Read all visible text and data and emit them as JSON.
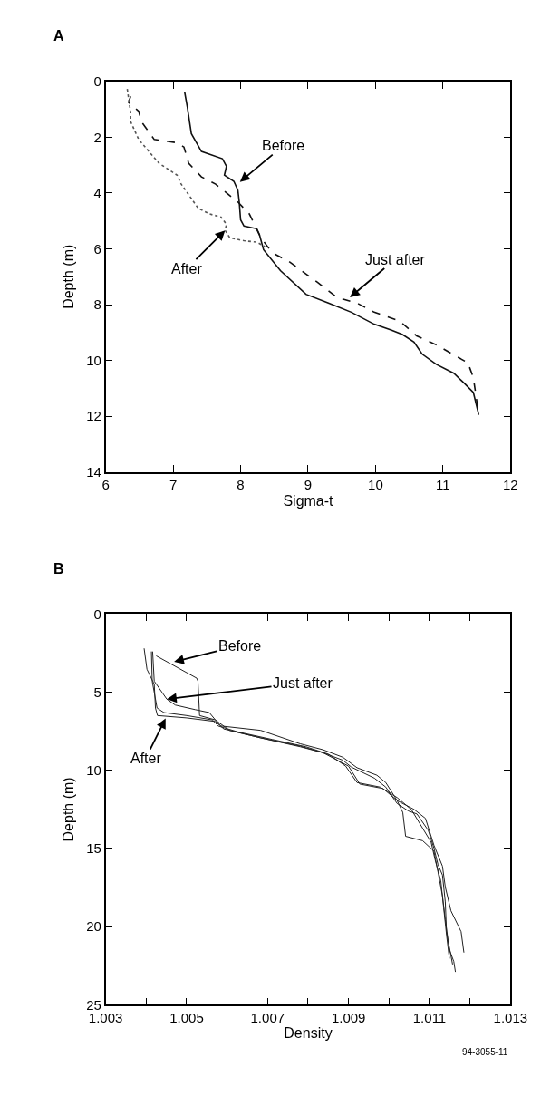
{
  "chart_data": [
    {
      "type": "line",
      "title": "A",
      "xlabel": "Sigma-t",
      "ylabel": "Depth (m)",
      "xlim": [
        6,
        12
      ],
      "xticks": [
        6,
        7,
        8,
        9,
        10,
        11,
        12
      ],
      "ylim": [
        14,
        0
      ],
      "yticks": [
        0,
        2,
        4,
        6,
        8,
        10,
        12,
        14
      ],
      "marker": "none",
      "series": [
        {
          "color": "#111111",
          "line_style": "solid",
          "x": [
            7.17,
            7.21,
            7.27,
            7.42,
            7.73,
            7.79,
            7.76,
            7.9,
            7.96,
            7.98,
            8.0,
            8.05,
            8.24,
            8.28,
            8.34,
            8.59,
            8.97,
            9.31,
            9.64,
            9.98,
            10.23,
            10.4,
            10.57,
            10.69,
            10.9,
            11.16,
            11.32,
            11.45,
            11.53
          ],
          "values": [
            0.37,
            0.91,
            1.87,
            2.51,
            2.77,
            3.04,
            3.36,
            3.58,
            3.9,
            4.32,
            4.96,
            5.18,
            5.28,
            5.5,
            6.03,
            6.78,
            7.63,
            7.95,
            8.27,
            8.7,
            8.91,
            9.07,
            9.34,
            9.77,
            10.14,
            10.46,
            10.83,
            11.15,
            11.95
          ]
        },
        {
          "color": "#111111",
          "line_style": "dashed",
          "x": [
            6.37,
            6.34,
            6.39,
            6.49,
            6.53,
            6.72,
            7.04,
            7.16,
            7.23,
            7.42,
            7.63,
            7.96,
            8.13,
            8.3,
            8.47,
            8.72,
            9.14,
            9.43,
            9.73,
            9.98,
            10.36,
            10.61,
            10.9,
            11.37,
            11.45,
            11.53
          ],
          "values": [
            0.53,
            0.75,
            0.85,
            1.07,
            1.44,
            2.08,
            2.19,
            2.35,
            2.93,
            3.42,
            3.68,
            4.32,
            4.75,
            5.6,
            6.14,
            6.46,
            7.2,
            7.74,
            7.95,
            8.27,
            8.59,
            9.12,
            9.44,
            10.09,
            10.62,
            11.95
          ]
        },
        {
          "color": "#555555",
          "line_style": "dotted",
          "x": [
            6.32,
            6.37,
            6.37,
            6.49,
            6.79,
            7.06,
            7.12,
            7.37,
            7.54,
            7.71,
            7.79,
            7.77,
            7.84,
            8.05,
            8.24,
            8.36
          ],
          "values": [
            0.27,
            1.12,
            1.44,
            2.08,
            2.93,
            3.36,
            3.68,
            4.54,
            4.75,
            4.86,
            5.12,
            5.34,
            5.6,
            5.71,
            5.76,
            5.92
          ]
        }
      ],
      "annotations": [
        {
          "text": "Before",
          "x": 7.99,
          "y": 3.6
        },
        {
          "text": "After",
          "x": 7.77,
          "y": 5.34
        },
        {
          "text": "Just after",
          "x": 9.62,
          "y": 7.74
        }
      ]
    },
    {
      "type": "line",
      "title": "B",
      "xlabel": "Density",
      "ylabel": "Depth (m)",
      "xlim": [
        1.003,
        1.013
      ],
      "xticks": [
        1.003,
        {
          "value": 1.004,
          "label": null
        },
        1.005,
        {
          "value": 1.006,
          "label": null
        },
        1.007,
        {
          "value": 1.008,
          "label": null
        },
        1.009,
        {
          "value": 1.01,
          "label": null
        },
        1.011,
        {
          "value": 1.012,
          "label": null
        },
        1.013
      ],
      "ylim": [
        25,
        0
      ],
      "yticks": [
        0,
        5,
        10,
        15,
        20,
        25
      ],
      "marker": "none",
      "series": [
        {
          "color": "#222222",
          "line_style": "solid",
          "x": [
            1.00425,
            1.00525,
            1.00528,
            1.00532,
            1.00571,
            1.00606,
            1.00683,
            1.00781,
            1.00837,
            1.00886,
            1.00907,
            1.00964,
            1.00992,
            1.0102,
            1.01048,
            1.01069,
            1.01097,
            1.01111,
            1.01121,
            1.01132,
            1.01139,
            1.01142,
            1.01149,
            1.0116,
            1.01164
          ],
          "values": [
            2.67,
            4.1,
            4.29,
            6.49,
            6.77,
            7.44,
            7.92,
            8.45,
            8.87,
            9.35,
            9.79,
            10.5,
            11.07,
            12.12,
            12.6,
            12.79,
            13.84,
            14.98,
            16.03,
            16.7,
            18.42,
            20.32,
            21.47,
            22.23,
            22.9
          ]
        },
        {
          "color": "#222222",
          "line_style": "solid",
          "x": [
            1.00416,
            1.0042,
            1.00451,
            1.00472,
            1.00521,
            1.00556,
            1.00571,
            1.00585,
            1.00683,
            1.00781,
            1.00837,
            1.00886,
            1.00921,
            1.0097,
            1.00992,
            1.0102,
            1.01062,
            1.0109,
            1.01111,
            1.01132,
            1.01139,
            1.01153,
            1.01178,
            1.01185
          ],
          "values": [
            2.39,
            4.29,
            5.44,
            5.82,
            6.11,
            6.3,
            6.77,
            7.16,
            7.44,
            8.3,
            8.68,
            9.16,
            9.83,
            10.31,
            10.78,
            11.93,
            12.5,
            13.07,
            14.79,
            16.13,
            17.46,
            18.99,
            20.32,
            21.66
          ]
        },
        {
          "color": "#222222",
          "line_style": "solid",
          "x": [
            1.00395,
            1.00402,
            1.0042,
            1.00423,
            1.00428,
            1.005,
            1.00571,
            1.00592,
            1.00683,
            1.00781,
            1.00837,
            1.009,
            1.00928,
            1.00985,
            1.0102,
            1.01034,
            1.01041,
            1.01083,
            1.01111,
            1.01121,
            1.01132,
            1.01139,
            1.01146,
            1.01157
          ],
          "values": [
            2.19,
            3.53,
            4.48,
            6.01,
            6.49,
            6.64,
            6.87,
            7.35,
            7.92,
            8.49,
            8.87,
            9.73,
            10.88,
            11.16,
            11.93,
            12.69,
            14.22,
            14.5,
            15.17,
            16.51,
            18.03,
            19.56,
            20.9,
            22.42
          ]
        },
        {
          "color": "#222222",
          "line_style": "solid",
          "x": [
            1.00413,
            1.00415,
            1.00427,
            1.00444,
            1.005,
            1.00564,
            1.00578,
            1.00627,
            1.00711,
            1.00795,
            1.00851,
            1.00893,
            1.00921,
            1.00978,
            1.0102,
            1.01055,
            1.01104,
            1.01114,
            1.01128,
            1.01135,
            1.01142,
            1.01149
          ],
          "values": [
            2.39,
            4.29,
            6.01,
            6.3,
            6.49,
            6.77,
            7.16,
            7.54,
            8.02,
            8.49,
            8.97,
            9.73,
            10.78,
            11.07,
            11.74,
            12.5,
            14.6,
            15.74,
            17.08,
            18.8,
            20.52,
            22.04
          ]
        }
      ],
      "annotations": [
        {
          "text": "Before",
          "x": 1.00469,
          "y": 3.05
        },
        {
          "text": "Just after",
          "x": 1.00451,
          "y": 5.44
        },
        {
          "text": "After",
          "x": 1.00448,
          "y": 6.68
        },
        "94-3055-11"
      ]
    }
  ]
}
